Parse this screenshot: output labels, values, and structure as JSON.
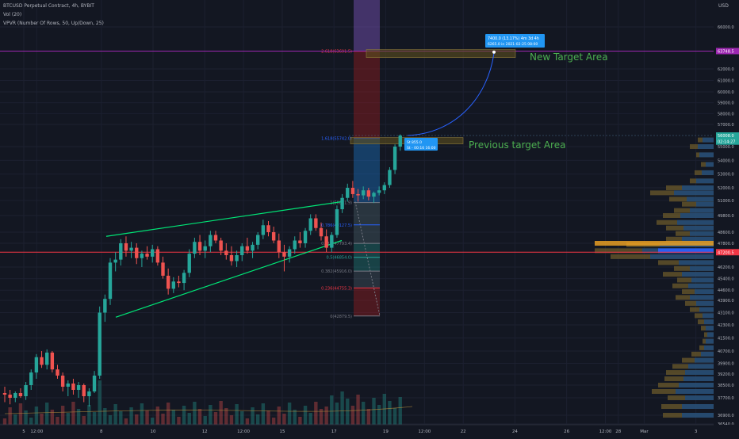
{
  "header": {
    "line1": "BTCUSD Perpetual Contract, 4h, BYBIT",
    "line2": "Vol (20)",
    "line3": "VPVR (Number Of Rows, 50, Up/Down, 25)"
  },
  "currency": "USD",
  "price_axis": [
    {
      "price": 66000,
      "label": "66000.0"
    },
    {
      "price": 62000,
      "label": "62000.0"
    },
    {
      "price": 61000,
      "label": "61000.0"
    },
    {
      "price": 60000,
      "label": "60000.0"
    },
    {
      "price": 59000,
      "label": "59000.0"
    },
    {
      "price": 58000,
      "label": "58000.0"
    },
    {
      "price": 57000,
      "label": "57000.0"
    },
    {
      "price": 55000,
      "label": "55000.0"
    },
    {
      "price": 54000,
      "label": "54000.0"
    },
    {
      "price": 53000,
      "label": "53000.0"
    },
    {
      "price": 52000,
      "label": "52000.0"
    },
    {
      "price": 51000,
      "label": "51000.0"
    },
    {
      "price": 49800,
      "label": "49800.0"
    },
    {
      "price": 48600,
      "label": "48600.0"
    },
    {
      "price": 47800,
      "label": "47800.0"
    },
    {
      "price": 46200,
      "label": "46200.0"
    },
    {
      "price": 45400,
      "label": "45400.0"
    },
    {
      "price": 44600,
      "label": "44600.0"
    },
    {
      "price": 43900,
      "label": "43900.0"
    },
    {
      "price": 43100,
      "label": "43100.0"
    },
    {
      "price": 42300,
      "label": "42300.0"
    },
    {
      "price": 41500,
      "label": "41500.0"
    },
    {
      "price": 40700,
      "label": "40700.0"
    },
    {
      "price": 39900,
      "label": "39900.0"
    },
    {
      "price": 39200,
      "label": "39200.0"
    },
    {
      "price": 38500,
      "label": "38500.0"
    },
    {
      "price": 37700,
      "label": "37700.0"
    },
    {
      "price": 36900,
      "label": "36900.0"
    },
    {
      "price": 36500,
      "label": "36540.0"
    }
  ],
  "price_tags": [
    {
      "price": 63700,
      "label": "63748.5",
      "color": "#9c27b0"
    },
    {
      "price": 56000,
      "label": "56008.0",
      "color": "#26a69a"
    },
    {
      "price": 55450,
      "label": "02:14:27",
      "color": "#26a69a"
    },
    {
      "price": 47200,
      "label": "47200.5",
      "color": "#f23645"
    }
  ],
  "time_axis": [
    {
      "label": "5",
      "day": 5.0
    },
    {
      "label": "12:00",
      "day": 5.5
    },
    {
      "label": "8",
      "day": 8.0
    },
    {
      "label": "10",
      "day": 10.0
    },
    {
      "label": "12",
      "day": 12.0
    },
    {
      "label": "12:00",
      "day": 13.5
    },
    {
      "label": "15",
      "day": 15.0
    },
    {
      "label": "17",
      "day": 17.0
    },
    {
      "label": "19",
      "day": 19.0
    },
    {
      "label": "12:00",
      "day": 20.5
    },
    {
      "label": "22",
      "day": 22.0
    },
    {
      "label": "24",
      "day": 24.0
    },
    {
      "label": "26",
      "day": 26.0
    },
    {
      "label": "12:00",
      "day": 27.5
    },
    {
      "label": "28",
      "day": 28.0
    },
    {
      "label": "Mar",
      "day": 29.0
    },
    {
      "label": "3",
      "day": 31.0
    }
  ],
  "fib_levels": [
    {
      "ratio": 2.618,
      "label": "2.618(63691.5)",
      "price": 63690,
      "color": "#f23645"
    },
    {
      "ratio": 1.618,
      "label": "1.618(55742.0)",
      "price": 55742,
      "color": "#2962ff"
    },
    {
      "ratio": 1,
      "label": "1(50831.9)",
      "price": 50832,
      "color": "#787b86"
    },
    {
      "ratio": 0.786,
      "label": "0.786(49127.5)",
      "price": 49128,
      "color": "#2962ff"
    },
    {
      "ratio": 0.618,
      "label": "0.618(47793.4)",
      "price": 47793,
      "color": "#787b86"
    },
    {
      "ratio": 0.5,
      "label": "0.5(46854.0)",
      "price": 46854,
      "color": "#26a69a"
    },
    {
      "ratio": 0.382,
      "label": "0.382(45916.0)",
      "price": 45916,
      "color": "#787b86"
    },
    {
      "ratio": 0.236,
      "label": "0.236(44755.3)",
      "price": 44755,
      "color": "#f23645"
    },
    {
      "ratio": 0,
      "label": "0(42879.5)",
      "price": 42880,
      "color": "#787b86"
    }
  ],
  "annotations": {
    "new_target": "New Target Area",
    "previous_target": "Previous target Area",
    "box_top_line1": "7400.0 (13.17%) 4m 3d 4h",
    "box_top_line2": "6265.0 in 2021-02-25 08:00",
    "box_mid_line1": "St 855.0",
    "box_mid_line2": "St  - 00:16 16:00"
  },
  "colors": {
    "bull": "#26a69a",
    "bear": "#ef5350",
    "trend": "#00e676",
    "target_text": "#4caf50",
    "fib_red": "#f23645",
    "fib_blue": "#2962ff",
    "purple": "#9c27b0"
  },
  "chart_data": {
    "type": "candlestick",
    "timeframe": "4h",
    "symbol": "BTCUSD",
    "candles": [
      [
        38000,
        38400,
        37500,
        37900
      ],
      [
        37900,
        38200,
        37400,
        37700
      ],
      [
        37700,
        38100,
        37500,
        38000
      ],
      [
        38000,
        38300,
        37700,
        37800
      ],
      [
        37800,
        38700,
        37600,
        38500
      ],
      [
        38500,
        39500,
        38200,
        39300
      ],
      [
        39300,
        40500,
        38900,
        40300
      ],
      [
        40300,
        40700,
        39600,
        39800
      ],
      [
        39800,
        40800,
        39500,
        40600
      ],
      [
        40600,
        40700,
        39300,
        39500
      ],
      [
        39500,
        39800,
        38900,
        39100
      ],
      [
        39100,
        39300,
        38100,
        38400
      ],
      [
        38400,
        38800,
        37800,
        38600
      ],
      [
        38600,
        38900,
        37900,
        38200
      ],
      [
        38200,
        38700,
        37700,
        38500
      ],
      [
        38500,
        38600,
        37500,
        37800
      ],
      [
        37800,
        38300,
        37300,
        38100
      ],
      [
        38100,
        39400,
        38000,
        39100
      ],
      [
        39100,
        43500,
        38900,
        43100
      ],
      [
        43100,
        44300,
        42500,
        44000
      ],
      [
        44000,
        46800,
        43600,
        46500
      ],
      [
        46500,
        47200,
        45900,
        46700
      ],
      [
        46700,
        48100,
        46300,
        47800
      ],
      [
        47800,
        48300,
        46900,
        47300
      ],
      [
        47300,
        47900,
        46800,
        47500
      ],
      [
        47500,
        47800,
        46400,
        46800
      ],
      [
        46800,
        47300,
        46200,
        47100
      ],
      [
        47100,
        47600,
        46700,
        46900
      ],
      [
        46900,
        47700,
        46500,
        47400
      ],
      [
        47400,
        47600,
        46300,
        46500
      ],
      [
        46500,
        46900,
        45400,
        45600
      ],
      [
        45600,
        46100,
        44300,
        44700
      ],
      [
        44700,
        45500,
        44400,
        45200
      ],
      [
        45200,
        45600,
        44800,
        45100
      ],
      [
        45100,
        46000,
        44600,
        45800
      ],
      [
        45800,
        47400,
        45500,
        47100
      ],
      [
        47100,
        48200,
        46800,
        47900
      ],
      [
        47900,
        48400,
        47000,
        47300
      ],
      [
        47300,
        48000,
        46800,
        47600
      ],
      [
        47600,
        48700,
        47200,
        48400
      ],
      [
        48400,
        48700,
        47800,
        48000
      ],
      [
        48000,
        48200,
        47000,
        47300
      ],
      [
        47300,
        47800,
        46700,
        47000
      ],
      [
        47000,
        47600,
        46300,
        46600
      ],
      [
        46600,
        47300,
        46200,
        47000
      ],
      [
        47000,
        47800,
        46600,
        47600
      ],
      [
        47600,
        48200,
        47100,
        47300
      ],
      [
        47300,
        47900,
        46800,
        47700
      ],
      [
        47700,
        48600,
        47400,
        48400
      ],
      [
        48400,
        49500,
        48100,
        49100
      ],
      [
        49100,
        49400,
        48300,
        48600
      ],
      [
        48600,
        49000,
        47800,
        48000
      ],
      [
        48000,
        48500,
        46800,
        47200
      ],
      [
        47200,
        47700,
        45900,
        46900
      ],
      [
        46900,
        47600,
        46500,
        47400
      ],
      [
        47400,
        48300,
        47100,
        48000
      ],
      [
        48000,
        48600,
        47500,
        47800
      ],
      [
        47800,
        48900,
        47500,
        48700
      ],
      [
        48700,
        49900,
        48400,
        49600
      ],
      [
        49600,
        49900,
        48700,
        48900
      ],
      [
        48900,
        49300,
        48000,
        48300
      ],
      [
        48300,
        48800,
        47200,
        47500
      ],
      [
        47500,
        48600,
        47200,
        48400
      ],
      [
        48400,
        50600,
        48200,
        50300
      ],
      [
        50300,
        51500,
        50000,
        51200
      ],
      [
        51200,
        52300,
        50900,
        52000
      ],
      [
        52000,
        52500,
        51200,
        51500
      ],
      [
        51500,
        51900,
        50900,
        51400
      ],
      [
        51400,
        52100,
        51100,
        51800
      ],
      [
        51800,
        52000,
        51000,
        51300
      ],
      [
        51300,
        51700,
        50800,
        51600
      ],
      [
        51600,
        52100,
        51400,
        51800
      ],
      [
        51800,
        52400,
        51500,
        52200
      ],
      [
        52200,
        53500,
        52000,
        53300
      ],
      [
        53300,
        55200,
        53000,
        55000
      ],
      [
        55000,
        56100,
        54700,
        56000
      ]
    ]
  }
}
